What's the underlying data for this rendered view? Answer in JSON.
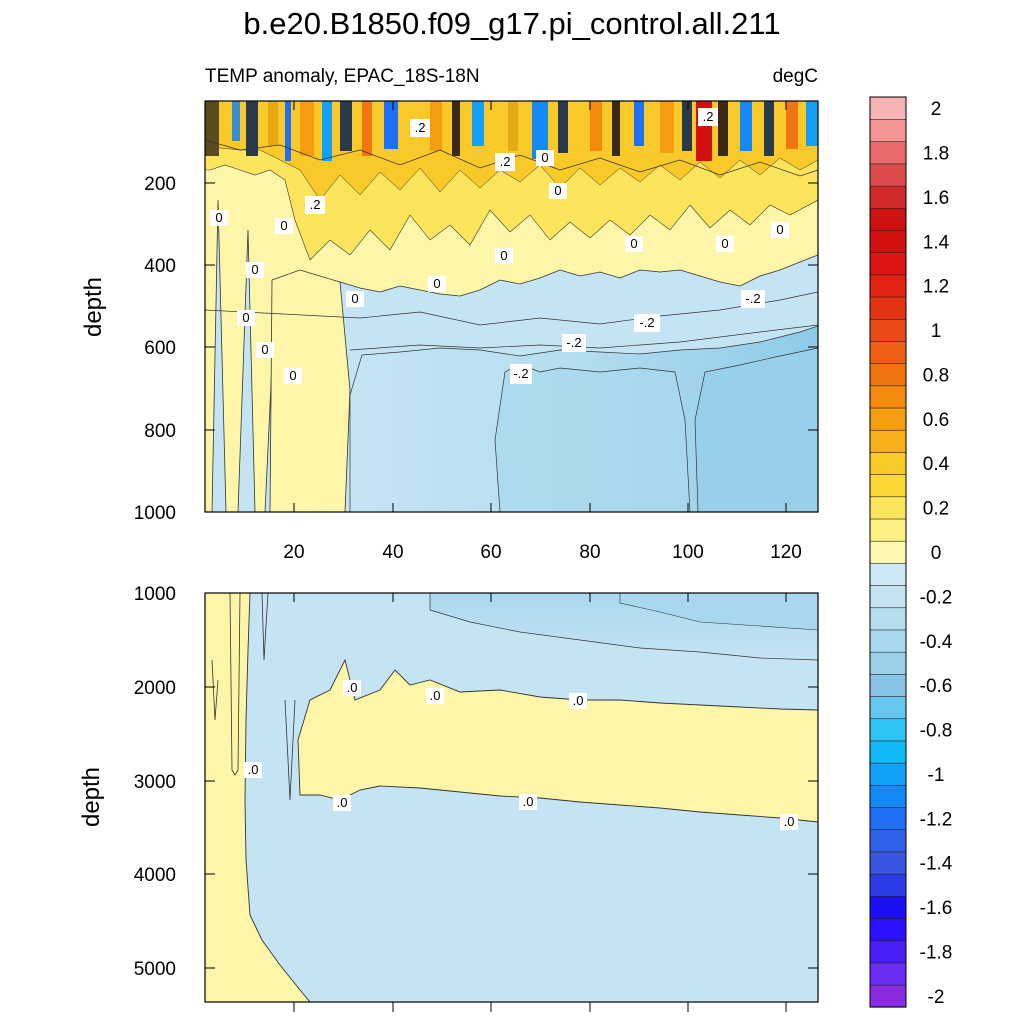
{
  "chart_data": {
    "type": "heatmap",
    "title": "b.e20.B1850.f09_g17.pi_control.all.211",
    "subtitle_left": "TEMP anomaly, EPAC_18S-18N",
    "subtitle_right": "degC",
    "panels": [
      {
        "name": "upper",
        "ylabel": "depth",
        "xlim": [
          1,
          127
        ],
        "ylim": [
          1000,
          5
        ],
        "x_ticks": [
          "20",
          "40",
          "60",
          "80",
          "100",
          "120"
        ],
        "y_ticks": [
          "200",
          "400",
          "600",
          "800",
          "1000"
        ],
        "contour_labels": [
          ".2",
          ".2",
          "0",
          ".2",
          "0",
          ".2",
          "0",
          "0",
          "0",
          "0",
          "0",
          "0",
          "0",
          "0",
          "0",
          "0",
          "0",
          "0",
          "-.2",
          "-.2",
          "-.2",
          "-.2"
        ]
      },
      {
        "name": "lower",
        "ylabel": "depth",
        "xlim": [
          1,
          127
        ],
        "ylim": [
          1000,
          5375
        ],
        "y_ticks": [
          "1000",
          "2000",
          "3000",
          "4000",
          "5000"
        ],
        "contour_labels": [
          ".0",
          ".0",
          ".0",
          ".0",
          ".0",
          ".0",
          ".0"
        ]
      }
    ],
    "colorbar": {
      "levels": [
        -2,
        -1.9,
        -1.8,
        -1.7,
        -1.6,
        -1.5,
        -1.4,
        -1.3,
        -1.2,
        -1.1,
        -1,
        -0.9,
        -0.8,
        -0.7,
        -0.6,
        -0.5,
        -0.4,
        -0.3,
        -0.2,
        -0.1,
        0,
        0.1,
        0.2,
        0.3,
        0.4,
        0.5,
        0.6,
        0.7,
        0.8,
        0.9,
        1,
        1.1,
        1.2,
        1.3,
        1.4,
        1.5,
        1.6,
        1.7,
        1.8,
        1.9,
        2
      ],
      "labels": [
        "2",
        "1.8",
        "1.6",
        "1.4",
        "1.2",
        "1",
        "0.8",
        "0.6",
        "0.4",
        "0.2",
        "0",
        "-0.2",
        "-0.4",
        "-0.6",
        "-0.8",
        "-1",
        "-1.2",
        "-1.4",
        "-1.6",
        "-1.8",
        "-2"
      ],
      "colors_bottom_to_top": [
        "#8a2be2",
        "#6a2ef2",
        "#4b1df8",
        "#2a12ff",
        "#1a0ff5",
        "#2a3de8",
        "#3a55e0",
        "#2f62e8",
        "#1e6ff5",
        "#1488f5",
        "#12a0f8",
        "#10b8f8",
        "#30c4f4",
        "#66c8ee",
        "#88c4e8",
        "#9ccfea",
        "#a9d8ee",
        "#b6def0",
        "#c4e4f4",
        "#cfe8f6",
        "#fcf8b0",
        "#fdf084",
        "#fce55c",
        "#fbd836",
        "#f9c829",
        "#f7b01a",
        "#f59d10",
        "#f38a0e",
        "#f07510",
        "#ed5f13",
        "#ea4a16",
        "#e53413",
        "#e22213",
        "#dc1515",
        "#d51011",
        "#cc1212",
        "#d22a2a",
        "#dd4c4c",
        "#e86a6a",
        "#f29595",
        "#f8b4b4"
      ]
    }
  }
}
